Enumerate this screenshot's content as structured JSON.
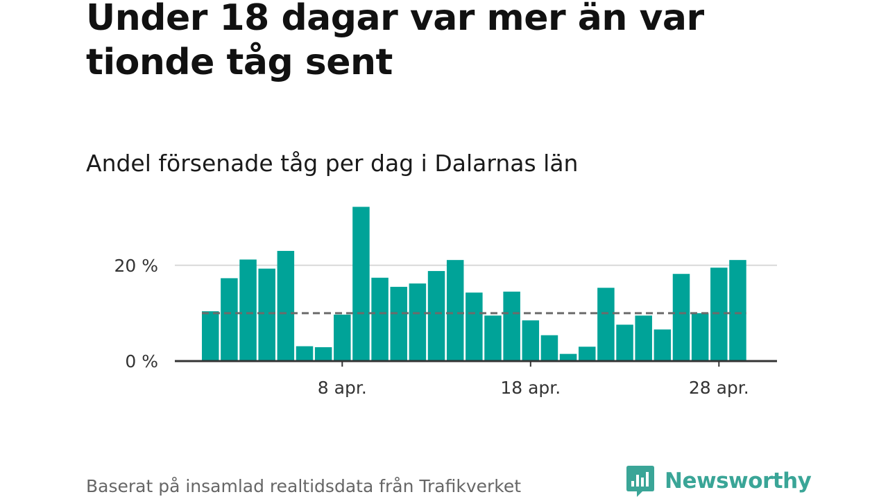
{
  "title": "Under 18 dagar var mer än var tionde tåg sent",
  "subtitle": "Andel försenade tåg per dag i Dalarnas län",
  "source": "Baserat på insamlad realtidsdata från Trafikverket",
  "logo_text": "Newsworthy",
  "colors": {
    "bar": "#00a398",
    "reference_line": "#6b6b6b",
    "gridline": "#d9d9d9",
    "axis": "#333333",
    "logo": "#3aa597"
  },
  "chart_data": {
    "type": "bar",
    "x_unit": "day in April",
    "categories": [
      1,
      2,
      3,
      4,
      5,
      6,
      7,
      8,
      9,
      10,
      11,
      12,
      13,
      14,
      15,
      16,
      17,
      18,
      19,
      20,
      21,
      22,
      23,
      24,
      25,
      26,
      27,
      28,
      29
    ],
    "values": [
      10.4,
      17.3,
      21.2,
      19.3,
      23.0,
      3.1,
      2.9,
      9.7,
      32.2,
      17.4,
      15.5,
      16.2,
      18.8,
      21.1,
      14.3,
      9.5,
      14.5,
      8.5,
      5.4,
      1.5,
      3.0,
      15.3,
      7.6,
      9.5,
      6.6,
      18.2,
      10.0,
      19.5,
      21.1
    ],
    "reference_line": 10,
    "ylim": [
      0,
      34
    ],
    "y_ticks": [
      {
        "value": 0,
        "label": "0 %"
      },
      {
        "value": 20,
        "label": "20 %"
      }
    ],
    "x_ticks": [
      {
        "day": 8,
        "label": "8 apr."
      },
      {
        "day": 18,
        "label": "18 apr."
      },
      {
        "day": 28,
        "label": "28 apr."
      }
    ],
    "gridlines": true,
    "legend": "none"
  }
}
